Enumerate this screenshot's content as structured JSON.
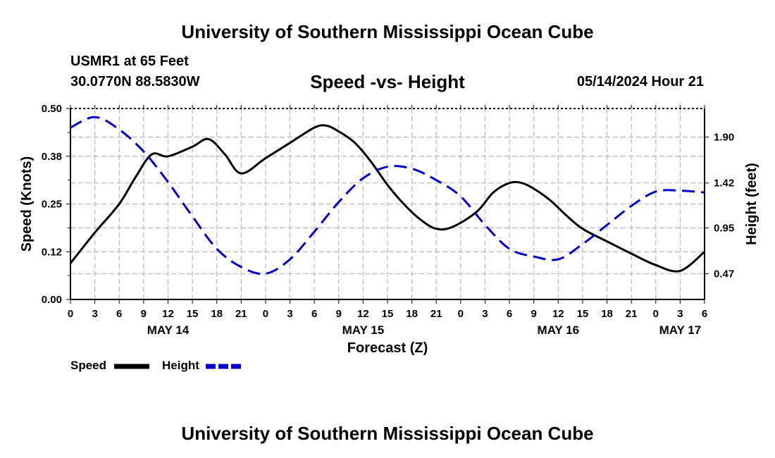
{
  "header": {
    "title": "University of Southern Mississippi Ocean Cube",
    "station": "USMR1 at 65 Feet",
    "coords": "30.0770N  88.5830W",
    "subtitle": "Speed -vs- Height",
    "datetime": "05/14/2024 Hour 21"
  },
  "footer": {
    "title": "University of Southern Mississippi Ocean Cube"
  },
  "chart_data": {
    "type": "line",
    "title": "Speed -vs- Height",
    "xlabel": "Forecast (Z)",
    "ylabel": "Speed (Knots)",
    "y2label": "Height (feet)",
    "x_range_hours": [
      0,
      78
    ],
    "ylim": [
      0,
      0.5
    ],
    "y2lim": [
      0.2,
      2.2
    ],
    "yticks": [
      "0.00",
      "0.12",
      "0.25",
      "0.38",
      "0.50"
    ],
    "y2ticks": [
      "0.47",
      "0.95",
      "1.42",
      "1.90"
    ],
    "xtick_labels": [
      "0",
      "3",
      "6",
      "9",
      "12",
      "15",
      "18",
      "21",
      "0",
      "3",
      "6",
      "9",
      "12",
      "15",
      "18",
      "21",
      "0",
      "3",
      "6",
      "9",
      "12",
      "15",
      "18",
      "21",
      "0",
      "3",
      "6"
    ],
    "day_labels": [
      {
        "label": "MAY 14",
        "hour": 12
      },
      {
        "label": "MAY 15",
        "hour": 36
      },
      {
        "label": "MAY 16",
        "hour": 60
      },
      {
        "label": "MAY 17",
        "hour": 75
      }
    ],
    "grid": true,
    "series": [
      {
        "name": "Speed",
        "axis": "left",
        "color": "#000000",
        "style": "solid",
        "x": [
          0,
          3,
          6,
          8,
          10,
          12,
          15,
          17,
          19,
          21,
          24,
          27,
          30,
          31.5,
          33,
          35,
          37,
          39,
          41,
          43,
          45,
          47,
          50,
          52,
          54,
          55.5,
          57,
          59,
          61,
          63,
          66,
          69,
          72,
          75,
          78
        ],
        "y": [
          0.095,
          0.175,
          0.25,
          0.32,
          0.38,
          0.375,
          0.4,
          0.42,
          0.38,
          0.33,
          0.37,
          0.41,
          0.45,
          0.455,
          0.44,
          0.41,
          0.36,
          0.3,
          0.25,
          0.21,
          0.185,
          0.19,
          0.23,
          0.28,
          0.305,
          0.305,
          0.29,
          0.26,
          0.22,
          0.185,
          0.152,
          0.12,
          0.09,
          0.075,
          0.125
        ]
      },
      {
        "name": "Height",
        "axis": "right",
        "color": "#0000cc",
        "style": "dashed",
        "x": [
          0,
          3,
          6,
          9,
          12,
          15,
          18,
          21,
          24,
          27,
          30,
          33,
          36,
          39,
          42,
          45,
          48,
          51,
          54,
          57,
          60,
          63,
          66,
          69,
          72,
          75,
          78
        ],
        "y": [
          2.0,
          2.11,
          1.98,
          1.75,
          1.43,
          1.07,
          0.73,
          0.54,
          0.47,
          0.62,
          0.91,
          1.22,
          1.47,
          1.59,
          1.57,
          1.45,
          1.28,
          0.98,
          0.73,
          0.65,
          0.62,
          0.78,
          0.98,
          1.18,
          1.33,
          1.34,
          1.32
        ]
      }
    ]
  },
  "legend": {
    "speed_label": "Speed",
    "height_label": "Height"
  }
}
